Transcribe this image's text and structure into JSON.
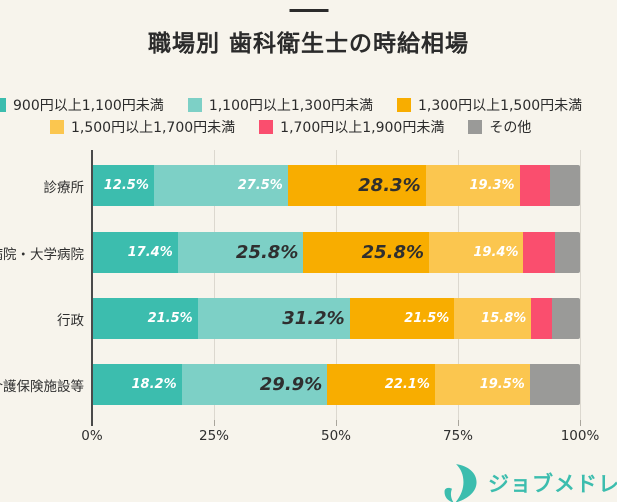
{
  "title": "職場別 歯科衛生士の時給相場",
  "colors": {
    "background": "#f7f4ec",
    "title_text": "#2b2b2b",
    "axis_line": "#4a4a4a",
    "gridline": "#dcd8cf",
    "accent_teal": "#3cbdae"
  },
  "chart_data": {
    "type": "bar",
    "variant": "horizontal-stacked",
    "title": "職場別 歯科衛生士の時給相場",
    "categories": [
      "診療所",
      "病院・大学病院",
      "行政",
      "介護保険施設等"
    ],
    "series": [
      {
        "name": "900円以上1,100円未満",
        "color": "#3cbdae",
        "show_labels": true,
        "values": [
          12.5,
          17.4,
          21.5,
          18.2
        ]
      },
      {
        "name": "1,100円以上1,300円未満",
        "color": "#7dd0c6",
        "show_labels": true,
        "values": [
          27.5,
          25.8,
          31.2,
          29.9
        ]
      },
      {
        "name": "1,300円以上1,500円未満",
        "color": "#f8ad00",
        "show_labels": true,
        "values": [
          28.3,
          25.8,
          21.5,
          22.1
        ]
      },
      {
        "name": "1,500円以上1,700円未満",
        "color": "#fbc64f",
        "show_labels": true,
        "values": [
          19.3,
          19.4,
          15.8,
          19.5
        ]
      },
      {
        "name": "1,700円以上1,900円未満",
        "color": "#fa4e6e",
        "show_labels": false,
        "values": [
          6.2,
          6.4,
          4.2,
          0
        ]
      },
      {
        "name": "その他",
        "color": "#9a9a98",
        "show_labels": false,
        "values": [
          6.2,
          5.2,
          5.8,
          10.3
        ]
      }
    ],
    "unlabeled_values_estimated": true,
    "value_suffix": "%",
    "xlim": [
      0,
      100
    ],
    "x_ticks": [
      "0%",
      "25%",
      "50%",
      "75%",
      "100%"
    ],
    "grid": true,
    "legend_position": "top",
    "emphasis_rule": "row maximum value rendered large and dark"
  },
  "logo": {
    "text": "ジョブメドレー",
    "color": "#3cbdae"
  }
}
